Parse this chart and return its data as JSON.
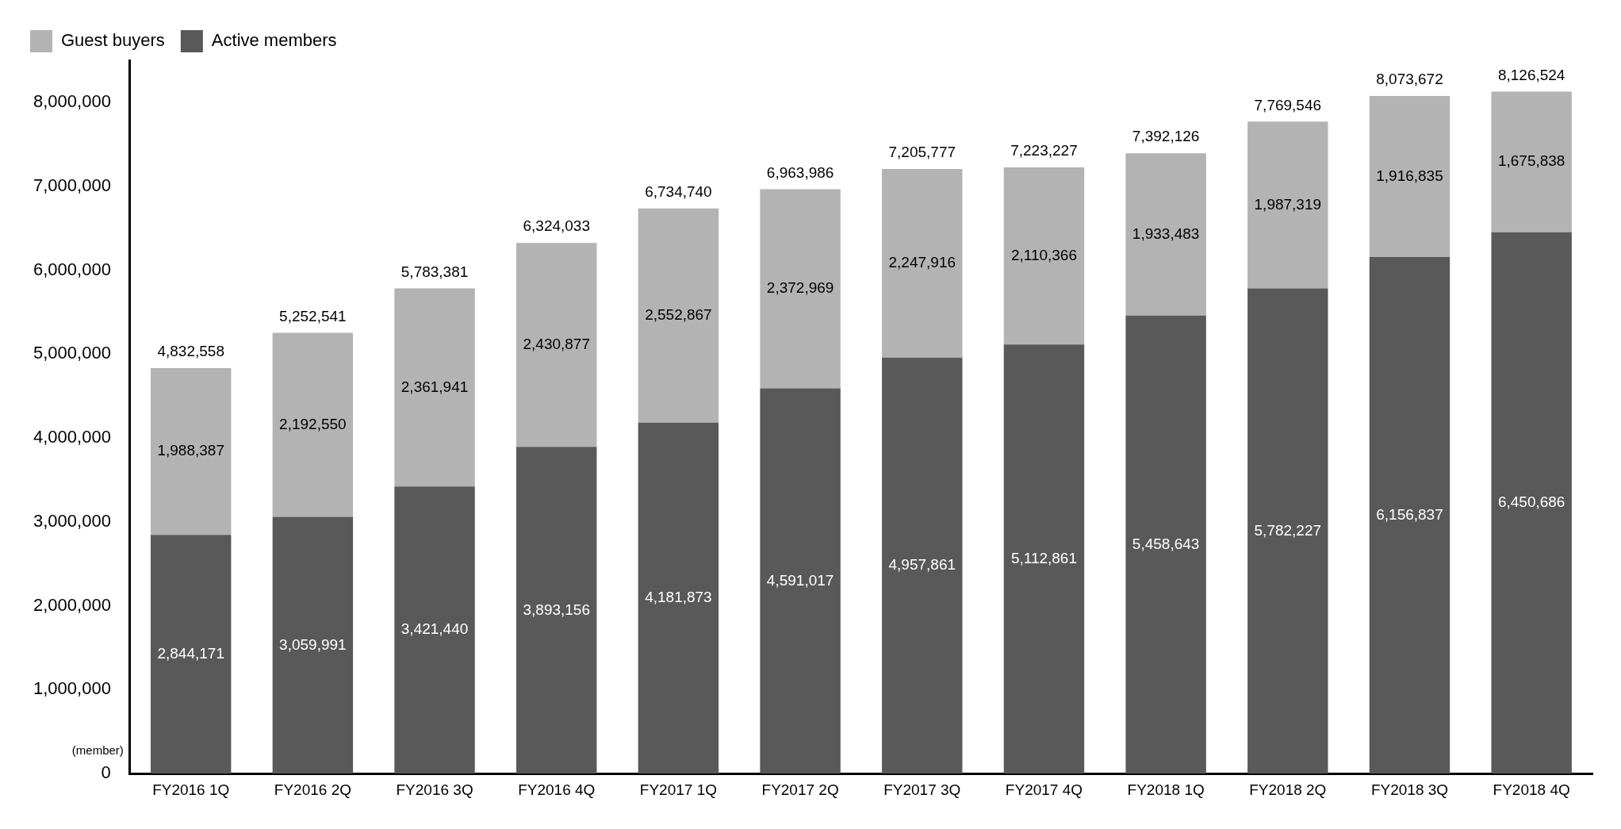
{
  "chart_data": {
    "type": "bar",
    "stacked": true,
    "categories": [
      "FY2016 1Q",
      "FY2016 2Q",
      "FY2016 3Q",
      "FY2016 4Q",
      "FY2017 1Q",
      "FY2017 2Q",
      "FY2017 3Q",
      "FY2017 4Q",
      "FY2018 1Q",
      "FY2018 2Q",
      "FY2018 3Q",
      "FY2018 4Q"
    ],
    "series": [
      {
        "name": "Active members",
        "color": "#595959",
        "values": [
          2844171,
          3059991,
          3421440,
          3893156,
          4181873,
          4591017,
          4957861,
          5112861,
          5458643,
          5782227,
          6156837,
          6450686
        ],
        "value_labels": [
          "2,844,171",
          "3,059,991",
          "3,421,440",
          "3,893,156",
          "4,181,873",
          "4,591,017",
          "4,957,861",
          "5,112,861",
          "5,458,643",
          "5,782,227",
          "6,156,837",
          "6,450,686"
        ]
      },
      {
        "name": "Guest buyers",
        "color": "#b3b3b3",
        "values": [
          1988387,
          2192550,
          2361941,
          2430877,
          2552867,
          2372969,
          2247916,
          2110366,
          1933483,
          1987319,
          1916835,
          1675838
        ],
        "value_labels": [
          "1,988,387",
          "2,192,550",
          "2,361,941",
          "2,430,877",
          "2,552,867",
          "2,372,969",
          "2,247,916",
          "2,110,366",
          "1,933,483",
          "1,987,319",
          "1,916,835",
          "1,675,838"
        ]
      }
    ],
    "totals": [
      "4,832,558",
      "5,252,541",
      "5,783,381",
      "6,324,033",
      "6,734,740",
      "6,963,986",
      "7,205,777",
      "7,223,227",
      "7,392,126",
      "7,769,546",
      "8,073,672",
      "8,126,524"
    ],
    "ylim": [
      0,
      8500000
    ],
    "yticks": [
      0,
      {
        "value": 1000000,
        "label": "1,000,000"
      },
      {
        "value": 2000000,
        "label": "2,000,000"
      },
      {
        "value": 3000000,
        "label": "3,000,000"
      },
      {
        "value": 4000000,
        "label": "4,000,000"
      },
      {
        "value": 5000000,
        "label": "5,000,000"
      },
      {
        "value": 6000000,
        "label": "6,000,000"
      },
      {
        "value": 7000000,
        "label": "7,000,000"
      },
      {
        "value": 8000000,
        "label": "8,000,000"
      }
    ],
    "grid": false,
    "legend": "top left",
    "annotations": [
      "(member)"
    ]
  }
}
